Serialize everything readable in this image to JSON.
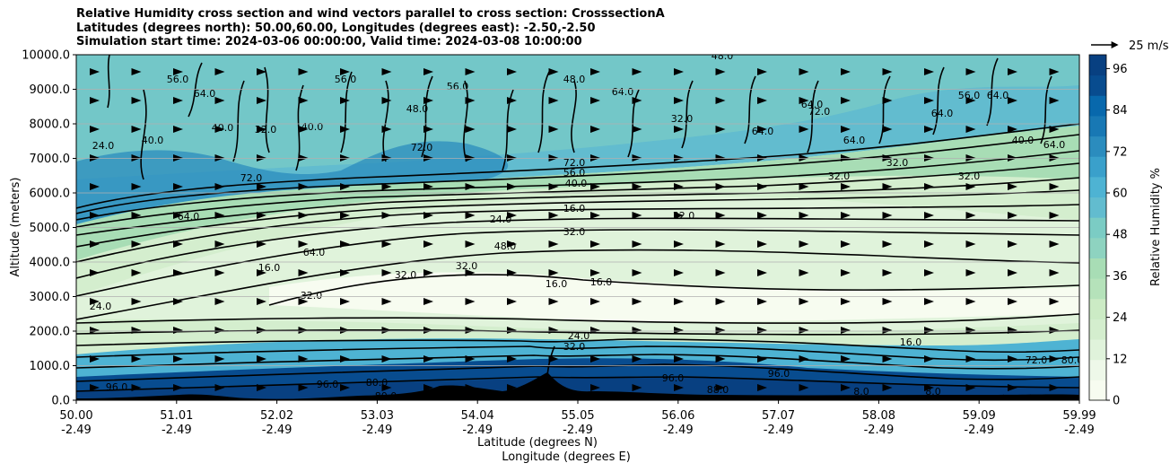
{
  "chart_data": {
    "type": "contour",
    "title_lines": [
      "Relative Humidity cross section and wind vectors parallel to cross section: CrosssectionA",
      "Latitudes (degrees north): 50.00,60.00, Longitudes (degrees east): -2.50,-2.50",
      "Simulation start time: 2024-03-06 00:00:00, Valid time: 2024-03-08 10:00:00"
    ],
    "ylabel": "Altitude (meters)",
    "xlabel_lat": "Latitude (degrees N)",
    "xlabel_lon": "Longitude (degrees E)",
    "ylim": [
      0,
      10000
    ],
    "y_ticks": [
      "0.0",
      "1000.0",
      "2000.0",
      "3000.0",
      "4000.0",
      "5000.0",
      "6000.0",
      "7000.0",
      "8000.0",
      "9000.0",
      "10000.0"
    ],
    "x_ticks_lat": [
      "50.00",
      "51.01",
      "52.02",
      "53.03",
      "54.04",
      "55.05",
      "56.06",
      "57.07",
      "58.08",
      "59.09",
      "59.99"
    ],
    "x_ticks_lon": [
      "-2.49",
      "-2.49",
      "-2.49",
      "-2.49",
      "-2.49",
      "-2.49",
      "-2.49",
      "-2.49",
      "-2.49",
      "-2.49",
      "-2.49"
    ],
    "xlim_lat": [
      50.0,
      59.99
    ],
    "horizontal_grid": true,
    "colorbar": {
      "label": "Relative Humidity %",
      "range": [
        0,
        100
      ],
      "ticks": [
        "0",
        "12",
        "24",
        "36",
        "48",
        "60",
        "72",
        "84",
        "96"
      ],
      "colors": [
        "#f7fcf0",
        "#eef8e9",
        "#e0f3db",
        "#d4eece",
        "#ccebc5",
        "#b5e2ba",
        "#a8ddb5",
        "#8ed3c0",
        "#7bccc4",
        "#62bccf",
        "#4eb3d3",
        "#3aa0cb",
        "#2b8cbe",
        "#1878b4",
        "#0868ac",
        "#084c8f",
        "#084081"
      ]
    },
    "quiver_key": {
      "label": "25 m/s"
    },
    "contour_labels": [
      "56.0",
      "48.0",
      "64.0",
      "40.0",
      "32.0",
      "72.0",
      "24.0",
      "16.0",
      "80.0",
      "96.0",
      "88.0",
      "8.0"
    ]
  }
}
